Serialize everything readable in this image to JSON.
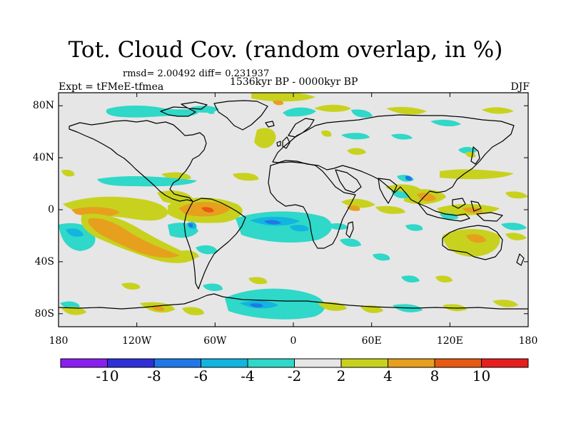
{
  "title": "Tot. Cloud Cov. (random overlap, in %)",
  "stats_text": "rmsd= 2.00492 diff= 0.231937",
  "experiment_text": "Expt = tFMeE-tfmea",
  "period_text": "1536kyr BP - 0000kyr BP",
  "season_text": "DJF",
  "y_axis": {
    "ticks": [
      {
        "label": "80N",
        "lat": 80
      },
      {
        "label": "40N",
        "lat": 40
      },
      {
        "label": "0",
        "lat": 0
      },
      {
        "label": "40S",
        "lat": -40
      },
      {
        "label": "80S",
        "lat": -80
      }
    ]
  },
  "x_axis": {
    "ticks": [
      {
        "label": "180",
        "lon": -180
      },
      {
        "label": "120W",
        "lon": -120
      },
      {
        "label": "60W",
        "lon": -60
      },
      {
        "label": "0",
        "lon": 0
      },
      {
        "label": "60E",
        "lon": 60
      },
      {
        "label": "120E",
        "lon": 120
      },
      {
        "label": "180",
        "lon": 180
      }
    ]
  },
  "colorbar": {
    "colors": [
      "#8a1ef0",
      "#2f2fd8",
      "#1e78e6",
      "#12b4e0",
      "#2fd8c8",
      "#e6e6e6",
      "#c8d21e",
      "#e6a01e",
      "#e65a12",
      "#e61e1e"
    ],
    "labels": [
      "-10",
      "-8",
      "-6",
      "-4",
      "-2",
      "2",
      "4",
      "8",
      "10"
    ]
  },
  "anomaly_colors": {
    "strong_negative": "#2f2fd8",
    "moderate_negative": "#1e78e6",
    "negative": "#12b4e0",
    "weak_negative": "#2fd8c8",
    "neutral": "#e6e6e6",
    "weak_positive": "#c8d21e",
    "positive": "#e6a01e",
    "strong_positive": "#e65a12"
  }
}
